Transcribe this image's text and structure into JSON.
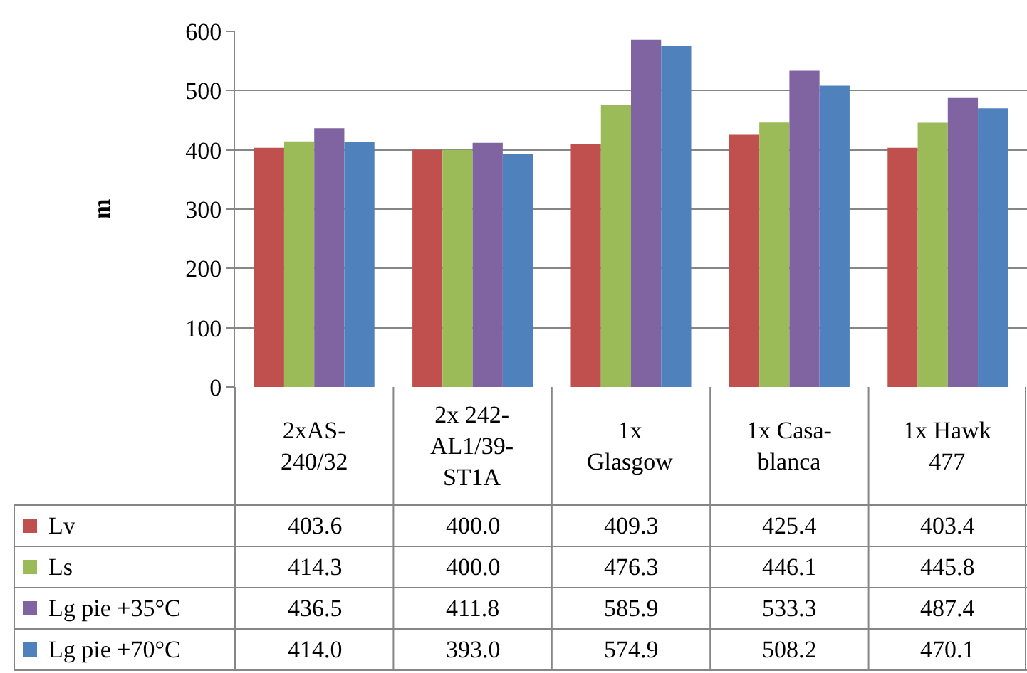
{
  "chart_data": {
    "type": "bar",
    "ylabel": "m",
    "categories": [
      "2xAS-\n240/32",
      "2x 242-\nAL1/39-\nST1A",
      "1x\nGlasgow",
      "1x Casa-\nblanca",
      "1x Hawk\n477"
    ],
    "series": [
      {
        "name": "Lv",
        "color": "#c0504d",
        "values": [
          403.6,
          400.0,
          409.3,
          425.4,
          403.4
        ],
        "value_labels": [
          "403.6",
          "400.0",
          "409.3",
          "425.4",
          "403.4"
        ]
      },
      {
        "name": "Ls",
        "color": "#9bbb59",
        "values": [
          414.3,
          400.0,
          476.3,
          446.1,
          445.8
        ],
        "value_labels": [
          "414.3",
          "400.0",
          "476.3",
          "446.1",
          "445.8"
        ]
      },
      {
        "name": "Lg pie +35°C",
        "color": "#8064a2",
        "values": [
          436.5,
          411.8,
          585.9,
          533.3,
          487.4
        ],
        "value_labels": [
          "436.5",
          "411.8",
          "585.9",
          "533.3",
          "487.4"
        ]
      },
      {
        "name": "Lg pie +70°C",
        "color": "#4f81bd",
        "values": [
          414.0,
          393.0,
          574.9,
          508.2,
          470.1
        ],
        "value_labels": [
          "414.0",
          "393.0",
          "574.9",
          "508.2",
          "470.1"
        ]
      }
    ],
    "ylim": [
      0,
      600
    ],
    "yticks": [
      0,
      100,
      200,
      300,
      400,
      500,
      600
    ],
    "grid": "y",
    "legend": "bottom left"
  }
}
